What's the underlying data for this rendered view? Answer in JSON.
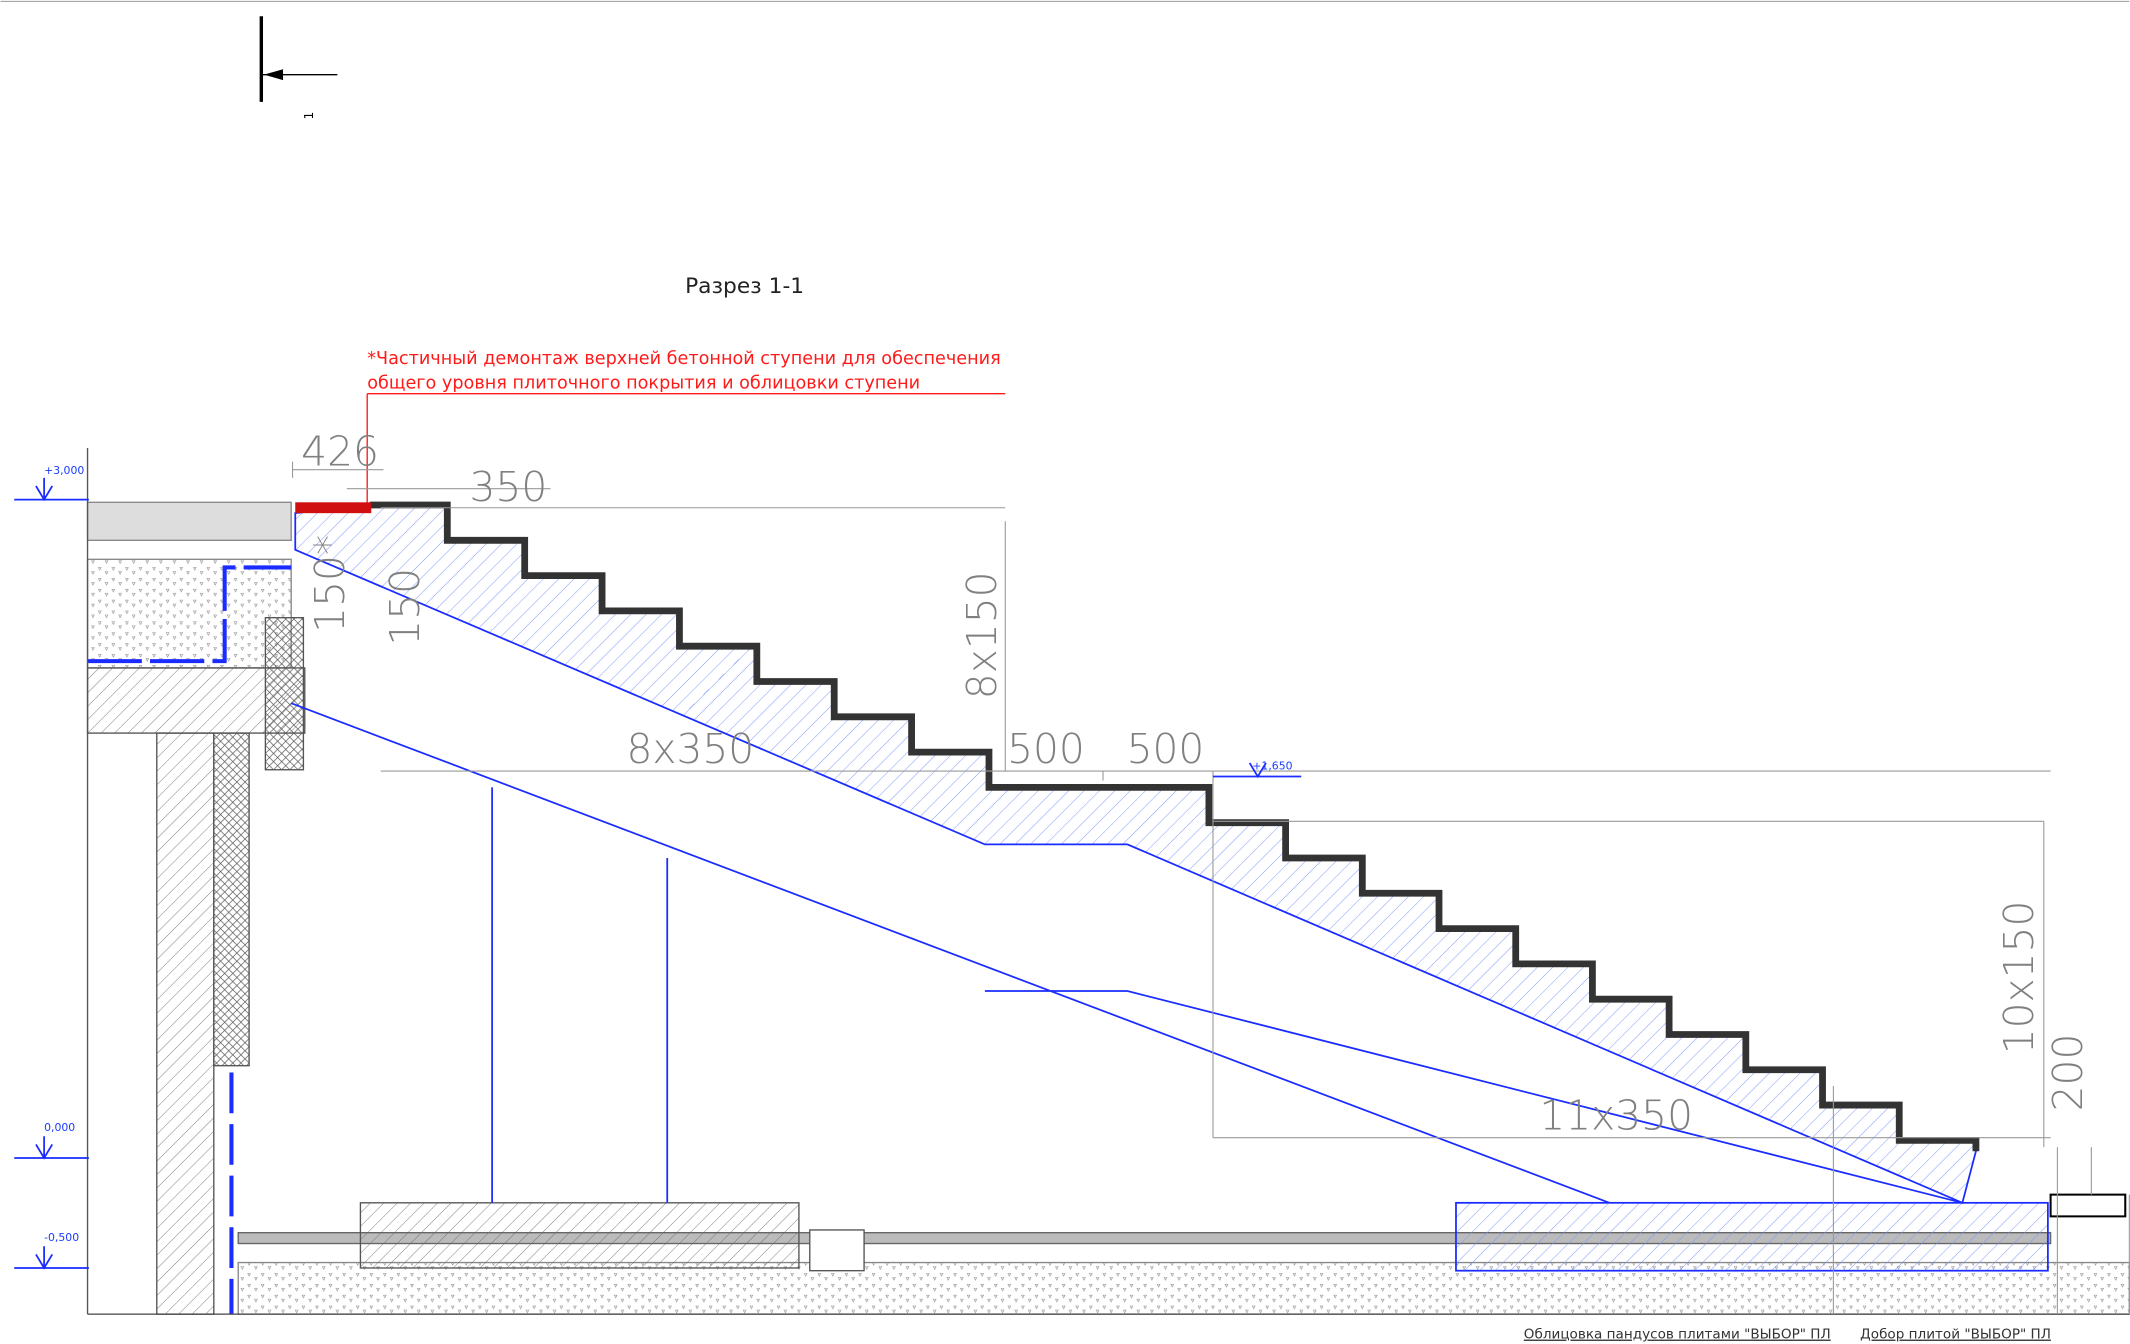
{
  "section_mark": "1",
  "title": "Разрез 1-1",
  "note": {
    "lines": [
      "*Частичный демонтаж верхней бетонной ступени для обеспечения",
      "общего уровня плиточного покрытия и облицовки ступени"
    ]
  },
  "dimensions": [
    "426",
    "350",
    "150*",
    "150",
    "8x150",
    "8x350",
    "500",
    "500",
    "10x150",
    "200",
    "11x350"
  ],
  "levels": [
    "+3,000",
    "+1,650",
    "0,000",
    "-0,500"
  ],
  "labels": [
    "Облицовка пандусов плитами \"ВЫБОР\" ПЛ",
    "Добор плитой \"ВЫБОР\" ПЛ"
  ]
}
